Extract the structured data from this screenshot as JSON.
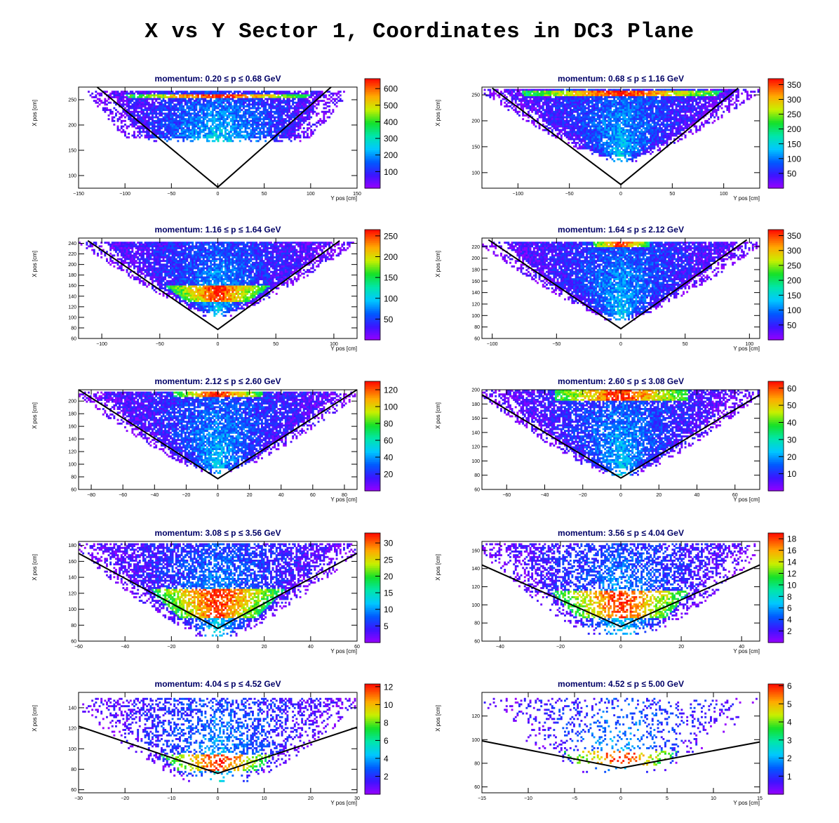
{
  "page": {
    "title": "X vs Y Sector 1, Coordinates in DC3 Plane"
  },
  "chart_data": [
    {
      "type": "heatmap",
      "title": "momentum: 0.20 ≤ p ≤ 0.68 GeV",
      "xlabel": "Y pos [cm]",
      "ylabel": "X pos [cm]",
      "xlim": [
        -150,
        150
      ],
      "ylim": [
        75,
        275
      ],
      "xticks": [
        -150,
        -100,
        -50,
        0,
        50,
        100,
        150
      ],
      "yticks": [
        100,
        150,
        200,
        250
      ],
      "zmax": 660,
      "zticks": [
        100,
        200,
        300,
        400,
        500,
        600
      ],
      "boundary_line": {
        "vertex": [
          0,
          77
        ],
        "left": [
          -130,
          275
        ],
        "right": [
          122,
          275
        ]
      },
      "distribution": {
        "top": 267,
        "bottom": 170,
        "half_width_top": 135,
        "half_width_bottom": 90,
        "hot_band": [
          255,
          262
        ],
        "density": 0.85
      }
    },
    {
      "type": "heatmap",
      "title": "momentum: 0.68 ≤ p ≤ 1.16 GeV",
      "xlabel": "Y pos [cm]",
      "ylabel": "X pos [cm]",
      "xlim": [
        -135,
        135
      ],
      "ylim": [
        70,
        265
      ],
      "xticks": [
        -100,
        -50,
        0,
        50,
        100
      ],
      "yticks": [
        100,
        150,
        200,
        250
      ],
      "zmax": 370,
      "zticks": [
        50,
        100,
        150,
        200,
        250,
        300,
        350
      ],
      "boundary_line": {
        "vertex": [
          0,
          77
        ],
        "left": [
          -125,
          263
        ],
        "right": [
          114,
          263
        ]
      },
      "distribution": {
        "top": 262,
        "bottom": 128,
        "half_width_top": 135,
        "half_width_bottom": 15,
        "hot_band": [
          248,
          258
        ],
        "density": 0.9
      }
    },
    {
      "type": "heatmap",
      "title": "momentum: 1.16 ≤ p ≤ 1.64 GeV",
      "xlabel": "Y pos [cm]",
      "ylabel": "X pos [cm]",
      "xlim": [
        -120,
        120
      ],
      "ylim": [
        60,
        250
      ],
      "xticks": [
        -100,
        -50,
        0,
        50,
        100
      ],
      "yticks": [
        60,
        80,
        100,
        120,
        140,
        160,
        180,
        200,
        220,
        240
      ],
      "zmax": 265,
      "zticks": [
        50,
        100,
        150,
        200,
        250
      ],
      "boundary_line": {
        "vertex": [
          0,
          77
        ],
        "left": [
          -112,
          245
        ],
        "right": [
          105,
          245
        ]
      },
      "distribution": {
        "top": 242,
        "bottom": 108,
        "half_width_top": 115,
        "half_width_bottom": 12,
        "hot_band": [
          130,
          160
        ],
        "density": 0.9
      }
    },
    {
      "type": "heatmap",
      "title": "momentum: 1.64 ≤ p ≤ 2.12 GeV",
      "xlabel": "Y pos [cm]",
      "ylabel": "X pos [cm]",
      "xlim": [
        -108,
        108
      ],
      "ylim": [
        60,
        235
      ],
      "xticks": [
        -100,
        -50,
        0,
        50,
        100
      ],
      "yticks": [
        60,
        80,
        100,
        120,
        140,
        160,
        180,
        200,
        220
      ],
      "zmax": 370,
      "zticks": [
        50,
        100,
        150,
        200,
        250,
        300,
        350
      ],
      "boundary_line": {
        "vertex": [
          0,
          77
        ],
        "left": [
          -103,
          232
        ],
        "right": [
          98,
          232
        ]
      },
      "distribution": {
        "top": 230,
        "bottom": 98,
        "half_width_top": 108,
        "half_width_bottom": 12,
        "hot_band": [
          220,
          230
        ],
        "hot_half_width": 22,
        "density": 0.9
      }
    },
    {
      "type": "heatmap",
      "title": "momentum: 2.12 ≤ p ≤ 2.60 GeV",
      "xlabel": "Y pos [cm]",
      "ylabel": "X pos [cm]",
      "xlim": [
        -88,
        88
      ],
      "ylim": [
        60,
        218
      ],
      "xticks": [
        -80,
        -60,
        -40,
        -20,
        0,
        20,
        40,
        60,
        80
      ],
      "yticks": [
        60,
        80,
        100,
        120,
        140,
        160,
        180,
        200
      ],
      "zmax": 130,
      "zticks": [
        20,
        40,
        60,
        80,
        100,
        120
      ],
      "boundary_line": {
        "vertex": [
          0,
          77
        ],
        "left": [
          -88,
          218
        ],
        "right": [
          88,
          218
        ]
      },
      "distribution": {
        "top": 216,
        "bottom": 90,
        "half_width_top": 88,
        "half_width_bottom": 10,
        "hot_band": [
          206,
          216
        ],
        "hot_half_width": 28,
        "density": 0.85
      }
    },
    {
      "type": "heatmap",
      "title": "momentum: 2.60 ≤ p ≤ 3.08 GeV",
      "xlabel": "Y pos [cm]",
      "ylabel": "X pos [cm]",
      "xlim": [
        -73,
        73
      ],
      "ylim": [
        60,
        200
      ],
      "xticks": [
        -60,
        -40,
        -20,
        0,
        20,
        40,
        60
      ],
      "yticks": [
        60,
        80,
        100,
        120,
        140,
        160,
        180,
        200
      ],
      "zmax": 64,
      "zticks": [
        10,
        20,
        30,
        40,
        50,
        60
      ],
      "boundary_line": {
        "vertex": [
          0,
          76
        ],
        "left": [
          -73,
          193
        ],
        "right": [
          73,
          193
        ]
      },
      "distribution": {
        "top": 199,
        "bottom": 85,
        "half_width_top": 73,
        "half_width_bottom": 10,
        "hot_band": [
          185,
          199
        ],
        "hot_half_width": 35,
        "density": 0.8
      }
    },
    {
      "type": "heatmap",
      "title": "momentum: 3.08 ≤ p ≤ 3.56 GeV",
      "xlabel": "Y pos [cm]",
      "ylabel": "X pos [cm]",
      "xlim": [
        -60,
        60
      ],
      "ylim": [
        60,
        185
      ],
      "xticks": [
        -60,
        -40,
        -20,
        0,
        20,
        40,
        60
      ],
      "yticks": [
        60,
        80,
        100,
        120,
        140,
        160,
        180
      ],
      "zmax": 33,
      "zticks": [
        5,
        10,
        15,
        20,
        25,
        30
      ],
      "boundary_line": {
        "vertex": [
          0,
          76
        ],
        "left": [
          -60,
          170
        ],
        "right": [
          60,
          170
        ]
      },
      "distribution": {
        "top": 183,
        "bottom": 72,
        "half_width_top": 62,
        "half_width_bottom": 10,
        "hot_band": [
          90,
          125
        ],
        "density": 0.7
      }
    },
    {
      "type": "heatmap",
      "title": "momentum: 3.56 ≤ p ≤ 4.04 GeV",
      "xlabel": "Y pos [cm]",
      "ylabel": "X pos [cm]",
      "xlim": [
        -46,
        46
      ],
      "ylim": [
        60,
        170
      ],
      "xticks": [
        -40,
        -20,
        0,
        20,
        40
      ],
      "yticks": [
        60,
        80,
        100,
        120,
        140,
        160
      ],
      "zmax": 19,
      "zticks": [
        2,
        4,
        6,
        8,
        10,
        12,
        14,
        16,
        18
      ],
      "boundary_line": {
        "vertex": [
          0,
          76
        ],
        "left": [
          -46,
          144
        ],
        "right": [
          46,
          144
        ]
      },
      "distribution": {
        "top": 168,
        "bottom": 72,
        "half_width_top": 47,
        "half_width_bottom": 12,
        "hot_band": [
          85,
          115
        ],
        "density": 0.55
      }
    },
    {
      "type": "heatmap",
      "title": "momentum: 4.04 ≤ p ≤ 4.52 GeV",
      "xlabel": "Y pos [cm]",
      "ylabel": "X pos [cm]",
      "xlim": [
        -30,
        30
      ],
      "ylim": [
        57,
        155
      ],
      "xticks": [
        -30,
        -20,
        -10,
        0,
        10,
        20,
        30
      ],
      "yticks": [
        60,
        80,
        100,
        120,
        140
      ],
      "zmax": 12.3,
      "zticks": [
        2,
        4,
        6,
        8,
        10,
        12
      ],
      "boundary_line": {
        "vertex": [
          0,
          76
        ],
        "left": [
          -30,
          122
        ],
        "right": [
          30,
          121
        ]
      },
      "distribution": {
        "top": 150,
        "bottom": 72,
        "half_width_top": 31,
        "half_width_bottom": 8,
        "hot_band": [
          78,
          95
        ],
        "density": 0.4
      }
    },
    {
      "type": "heatmap",
      "title": "momentum: 4.52 ≤ p ≤ 5.00 GeV",
      "xlabel": "Y pos [cm]",
      "ylabel": "X pos [cm]",
      "xlim": [
        -15,
        15
      ],
      "ylim": [
        55,
        140
      ],
      "xticks": [
        -15,
        -10,
        -5,
        0,
        5,
        10,
        15
      ],
      "yticks": [
        60,
        80,
        100,
        120
      ],
      "zmax": 6.1,
      "zticks": [
        1,
        2,
        3,
        4,
        5,
        6
      ],
      "boundary_line": {
        "vertex": [
          0,
          76
        ],
        "left": [
          -15,
          99
        ],
        "right": [
          15,
          98
        ]
      },
      "distribution": {
        "top": 136,
        "bottom": 75,
        "half_width_top": 15,
        "half_width_bottom": 5,
        "hot_band": [
          78,
          90
        ],
        "density": 0.18
      }
    }
  ]
}
